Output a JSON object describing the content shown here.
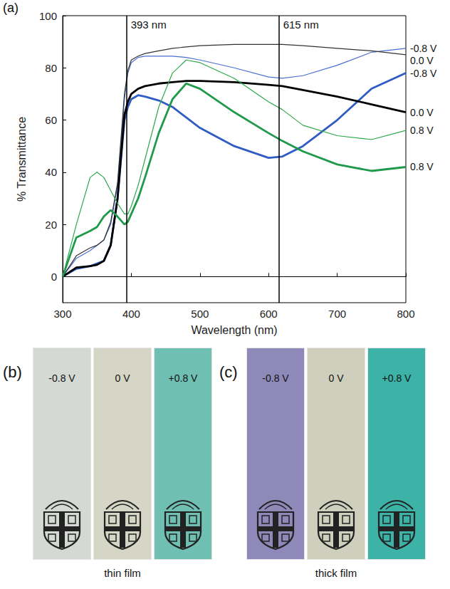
{
  "chart_data": {
    "type": "line",
    "panel_label": "(a)",
    "xlabel": "Wavelength (nm)",
    "ylabel": "% Transmittance",
    "xlim": [
      300,
      800
    ],
    "xticks": [
      300,
      400,
      500,
      600,
      700,
      800
    ],
    "ylim": [
      -10,
      100
    ],
    "yticks": [
      0,
      20,
      40,
      60,
      80,
      100
    ],
    "grid": false,
    "annotations": [
      {
        "x": 393,
        "label": "393 nm"
      },
      {
        "x": 615,
        "label": "615 nm"
      }
    ],
    "x": [
      300,
      320,
      340,
      350,
      360,
      370,
      380,
      390,
      395,
      400,
      410,
      420,
      440,
      460,
      480,
      500,
      550,
      600,
      620,
      650,
      700,
      750,
      800
    ],
    "series": [
      {
        "name": "-0.8 V",
        "color": "#4a6fd4",
        "line_style": "thin",
        "values": [
          0,
          7,
          10,
          12,
          14,
          20,
          35,
          68,
          78,
          82,
          84,
          84.5,
          84.5,
          84.5,
          84,
          83,
          80,
          76.5,
          76,
          77,
          81,
          86,
          87.5
        ]
      },
      {
        "name": "0.0 V",
        "color": "#333333",
        "line_style": "thin",
        "values": [
          0,
          8,
          11,
          12,
          14,
          21,
          36,
          70,
          79,
          83,
          84.5,
          85.5,
          86.5,
          87.5,
          88,
          88.5,
          89,
          89,
          89,
          88.5,
          87.5,
          86.5,
          85
        ]
      },
      {
        "name": "-0.8 V",
        "color": "#2f5cc4",
        "line_style": "thick",
        "values": [
          0,
          3,
          4,
          5,
          6,
          12,
          30,
          60,
          65,
          68,
          69.5,
          69,
          67.5,
          65,
          61,
          57,
          50,
          45.5,
          46,
          50,
          60,
          72,
          78
        ]
      },
      {
        "name": "0.0 V",
        "color": "#000000",
        "line_style": "thick",
        "values": [
          0,
          3.5,
          4,
          4.5,
          6,
          12,
          30,
          62,
          67,
          70,
          72,
          73,
          74,
          74.5,
          75,
          75,
          74.5,
          73.5,
          73,
          71.5,
          69,
          66,
          63
        ]
      },
      {
        "name": "0.8 V",
        "color": "#2ca84a",
        "line_style": "thin",
        "values": [
          0,
          20,
          38,
          40,
          38,
          33,
          28,
          24,
          24,
          27,
          35,
          45,
          65,
          78,
          83,
          82,
          76,
          67,
          64,
          58,
          54,
          52.5,
          56
        ]
      },
      {
        "name": "0.8 V",
        "color": "#1e9a4a",
        "line_style": "thick",
        "values": [
          0,
          15,
          17.5,
          19,
          23,
          25.5,
          23,
          20,
          21,
          24,
          30,
          38,
          55,
          68,
          74,
          72,
          63,
          55,
          52,
          48,
          43,
          40.5,
          42
        ]
      }
    ]
  },
  "photos": [
    {
      "letter": "(b)",
      "caption": "thin film",
      "strips": [
        {
          "label": "-0.8 V",
          "color": "#d5d9d3"
        },
        {
          "label": "0 V",
          "color": "#d6d6c6"
        },
        {
          "label": "+0.8 V",
          "color": "#6fbfb3"
        }
      ]
    },
    {
      "letter": "(c)",
      "caption": "thick film",
      "strips": [
        {
          "label": "-0.8 V",
          "color": "#8e89b9"
        },
        {
          "label": "0 V",
          "color": "#cfcfbd"
        },
        {
          "label": "+0.8 V",
          "color": "#3db3a8"
        }
      ]
    }
  ]
}
